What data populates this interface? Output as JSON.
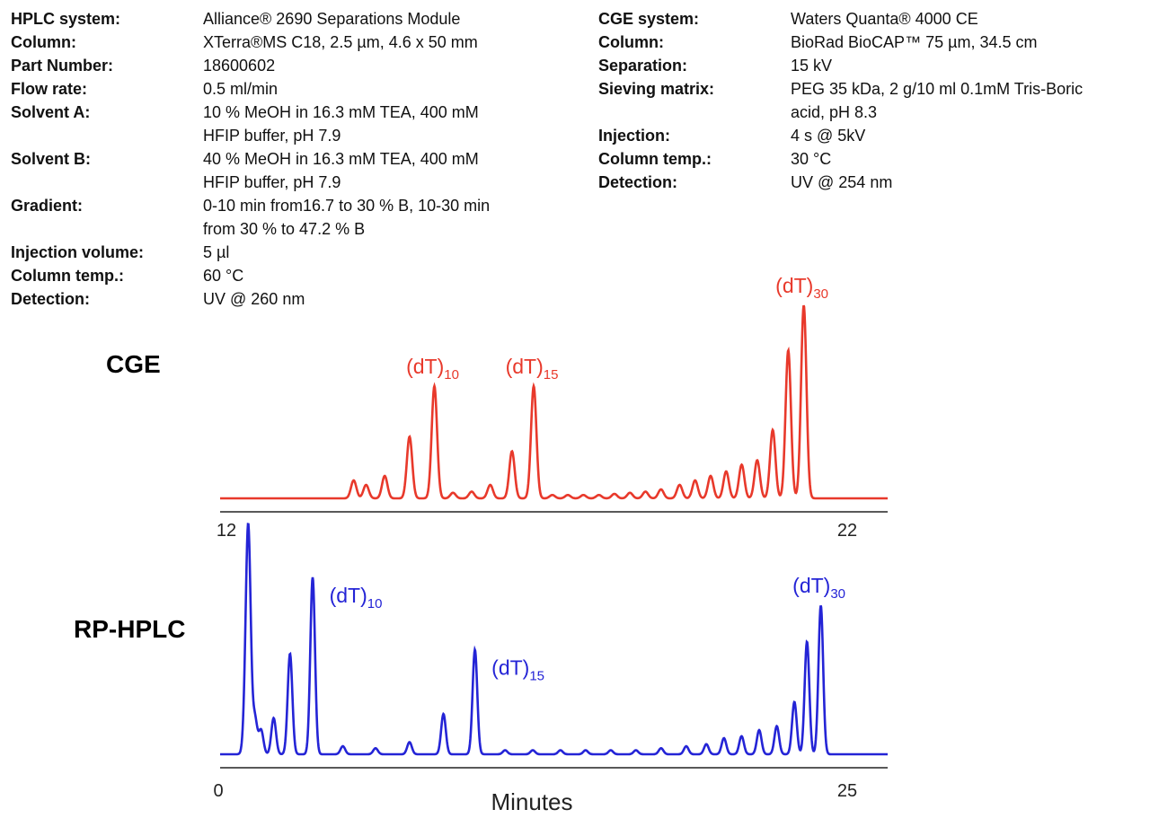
{
  "hplc_specs": {
    "rows": [
      {
        "label": "HPLC system:",
        "value": "Alliance® 2690 Separations Module"
      },
      {
        "label": "Column:",
        "value": "XTerra®MS C18, 2.5 µm, 4.6 x 50 mm"
      },
      {
        "label": "Part Number:",
        "value": "18600602"
      },
      {
        "label": "Flow rate:",
        "value": "0.5 ml/min"
      },
      {
        "label": "Solvent A:",
        "value": "10 % MeOH in 16.3 mM TEA, 400 mM\nHFIP buffer, pH 7.9"
      },
      {
        "label": "Solvent B:",
        "value": "40 % MeOH in 16.3 mM TEA, 400 mM\nHFIP buffer, pH 7.9"
      },
      {
        "label": "Gradient:",
        "value": "0-10 min from16.7 to 30 % B, 10-30 min\nfrom 30 % to 47.2 % B"
      },
      {
        "label": "Injection volume:",
        "value": "5 µl"
      },
      {
        "label": "Column temp.:",
        "value": "60 °C"
      },
      {
        "label": "Detection:",
        "value": "UV @ 260 nm"
      }
    ]
  },
  "cge_specs": {
    "rows": [
      {
        "label": "CGE system:",
        "value": "Waters Quanta® 4000 CE"
      },
      {
        "label": "Column:",
        "value": "BioRad BioCAP™ 75 µm, 34.5 cm"
      },
      {
        "label": "Separation:",
        "value": "15 kV"
      },
      {
        "label": "Sieving matrix:",
        "value": "PEG 35 kDa, 2 g/10 ml 0.1mM Tris-Boric\nacid, pH 8.3"
      },
      {
        "label": "Injection:",
        "value": "4 s @ 5kV"
      },
      {
        "label": "Column temp.:",
        "value": "30 °C"
      },
      {
        "label": "Detection:",
        "value": "UV @ 254 nm"
      }
    ]
  },
  "chart_data": [
    {
      "type": "line",
      "title": "CGE",
      "xlabel": "",
      "ylabel": "",
      "xlim": [
        12,
        22
      ],
      "x_tick_labels": [
        "12",
        "22"
      ],
      "color": "#e8392b",
      "grid": false,
      "peaks": [
        {
          "x": 14.05,
          "h": 0.16
        },
        {
          "x": 14.25,
          "h": 0.12
        },
        {
          "x": 14.55,
          "h": 0.2
        },
        {
          "x": 14.95,
          "h": 0.55
        },
        {
          "x": 15.35,
          "h": 1.0,
          "label": "(dT)",
          "sub": "10"
        },
        {
          "x": 15.65,
          "h": 0.05
        },
        {
          "x": 15.95,
          "h": 0.06
        },
        {
          "x": 16.25,
          "h": 0.12
        },
        {
          "x": 16.6,
          "h": 0.42
        },
        {
          "x": 16.95,
          "h": 1.0,
          "label": "(dT)",
          "sub": "15"
        },
        {
          "x": 17.25,
          "h": 0.03
        },
        {
          "x": 17.5,
          "h": 0.03
        },
        {
          "x": 17.75,
          "h": 0.03
        },
        {
          "x": 18.0,
          "h": 0.03
        },
        {
          "x": 18.25,
          "h": 0.04
        },
        {
          "x": 18.5,
          "h": 0.05
        },
        {
          "x": 18.75,
          "h": 0.06
        },
        {
          "x": 19.0,
          "h": 0.08
        },
        {
          "x": 19.3,
          "h": 0.12
        },
        {
          "x": 19.55,
          "h": 0.16
        },
        {
          "x": 19.8,
          "h": 0.2
        },
        {
          "x": 20.05,
          "h": 0.24
        },
        {
          "x": 20.3,
          "h": 0.3
        },
        {
          "x": 20.55,
          "h": 0.34
        },
        {
          "x": 20.8,
          "h": 0.61
        },
        {
          "x": 21.05,
          "h": 1.32
        },
        {
          "x": 21.3,
          "h": 1.72,
          "label": "(dT)",
          "sub": "30"
        }
      ]
    },
    {
      "type": "line",
      "title": "RP-HPLC",
      "xlabel": "Minutes",
      "ylabel": "",
      "xlim": [
        0,
        25
      ],
      "x_tick_labels": [
        "0",
        "25"
      ],
      "color": "#2424d6",
      "grid": false,
      "peaks": [
        {
          "x": 1.1,
          "h": 0.24
        },
        {
          "x": 1.2,
          "h": 1.0
        },
        {
          "x": 1.45,
          "h": 0.18
        },
        {
          "x": 1.7,
          "h": 0.12
        },
        {
          "x": 2.2,
          "h": 0.18
        },
        {
          "x": 2.85,
          "h": 0.5
        },
        {
          "x": 3.75,
          "h": 0.88,
          "label": "(dT)",
          "sub": "10"
        },
        {
          "x": 4.95,
          "h": 0.04
        },
        {
          "x": 6.25,
          "h": 0.03
        },
        {
          "x": 7.6,
          "h": 0.06
        },
        {
          "x": 8.95,
          "h": 0.2
        },
        {
          "x": 10.2,
          "h": 0.52,
          "label": "(dT)",
          "sub": "15"
        },
        {
          "x": 11.4,
          "h": 0.02
        },
        {
          "x": 12.5,
          "h": 0.02
        },
        {
          "x": 13.6,
          "h": 0.02
        },
        {
          "x": 14.6,
          "h": 0.02
        },
        {
          "x": 15.6,
          "h": 0.02
        },
        {
          "x": 16.6,
          "h": 0.02
        },
        {
          "x": 17.6,
          "h": 0.03
        },
        {
          "x": 18.6,
          "h": 0.04
        },
        {
          "x": 19.4,
          "h": 0.05
        },
        {
          "x": 20.1,
          "h": 0.08
        },
        {
          "x": 20.8,
          "h": 0.09
        },
        {
          "x": 21.5,
          "h": 0.12
        },
        {
          "x": 22.2,
          "h": 0.14
        },
        {
          "x": 22.9,
          "h": 0.26
        },
        {
          "x": 23.4,
          "h": 0.56
        },
        {
          "x": 23.95,
          "h": 0.74,
          "label": "(dT)",
          "sub": "30"
        }
      ]
    }
  ]
}
